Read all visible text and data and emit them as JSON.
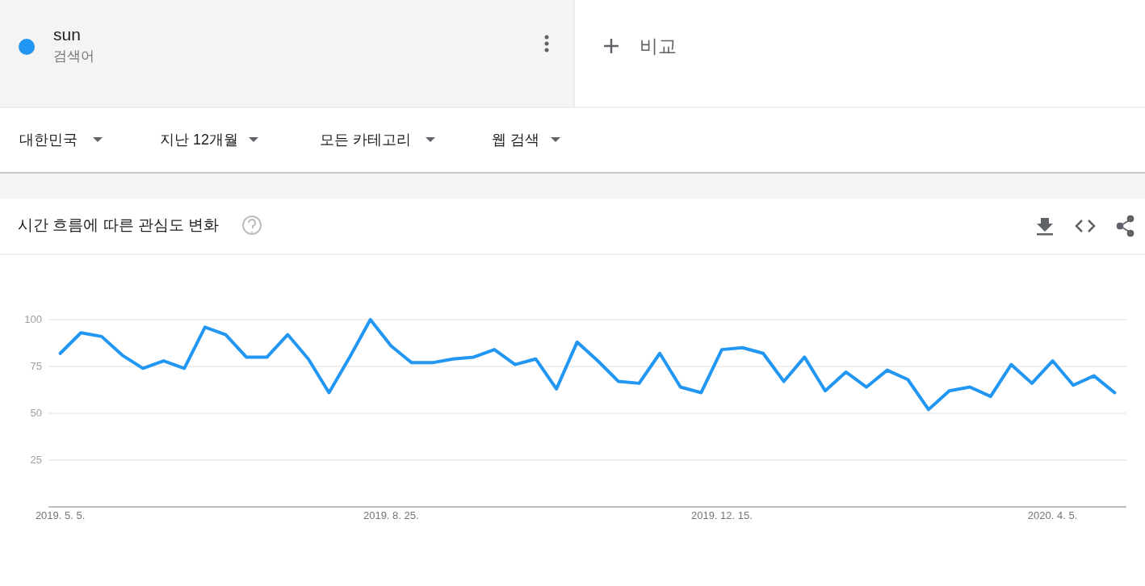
{
  "chart_data": {
    "type": "line",
    "title": "시간 흐름에 따른 관심도 변화",
    "annotations": [
      "검색어",
      "비교",
      "대한민국",
      "지난 12개월",
      "모든 카테고리",
      "웹 검색"
    ],
    "x": [
      "2019-05-05",
      "2019-05-12",
      "2019-05-19",
      "2019-05-26",
      "2019-06-02",
      "2019-06-09",
      "2019-06-16",
      "2019-06-23",
      "2019-06-30",
      "2019-07-07",
      "2019-07-14",
      "2019-07-21",
      "2019-07-28",
      "2019-08-04",
      "2019-08-11",
      "2019-08-18",
      "2019-08-25",
      "2019-09-01",
      "2019-09-08",
      "2019-09-15",
      "2019-09-22",
      "2019-09-29",
      "2019-10-06",
      "2019-10-13",
      "2019-10-20",
      "2019-10-27",
      "2019-11-03",
      "2019-11-10",
      "2019-11-17",
      "2019-11-24",
      "2019-12-01",
      "2019-12-08",
      "2019-12-15",
      "2019-12-22",
      "2019-12-29",
      "2020-01-05",
      "2020-01-12",
      "2020-01-19",
      "2020-01-26",
      "2020-02-02",
      "2020-02-09",
      "2020-02-16",
      "2020-02-23",
      "2020-03-01",
      "2020-03-08",
      "2020-03-15",
      "2020-03-22",
      "2020-03-29",
      "2020-04-05",
      "2020-04-12",
      "2020-04-19",
      "2020-04-26"
    ],
    "series": [
      {
        "name": "sun",
        "color": "#2196f3",
        "values": [
          82,
          93,
          91,
          81,
          74,
          78,
          74,
          96,
          92,
          80,
          80,
          92,
          79,
          61,
          80,
          100,
          86,
          77,
          77,
          79,
          80,
          84,
          76,
          79,
          63,
          88,
          78,
          67,
          66,
          82,
          64,
          61,
          84,
          85,
          82,
          67,
          80,
          62,
          72,
          64,
          73,
          68,
          52,
          62,
          64,
          59,
          76,
          66,
          78,
          65,
          70,
          61
        ]
      }
    ],
    "xlim": [
      "2019-05-01",
      "2020-04-30"
    ],
    "xticks": [
      {
        "value": "2019-05-05",
        "label": "2019. 5. 5."
      },
      {
        "value": "2019-08-25",
        "label": "2019. 8. 25."
      },
      {
        "value": "2019-12-15",
        "label": "2019. 12. 15."
      },
      {
        "value": "2020-04-05",
        "label": "2020. 4. 5."
      }
    ],
    "ylim": [
      0,
      100
    ],
    "yticks": [
      25,
      50,
      75,
      100
    ],
    "grid": "y",
    "legend": "top left",
    "marker": "none",
    "line_style": "solid"
  }
}
